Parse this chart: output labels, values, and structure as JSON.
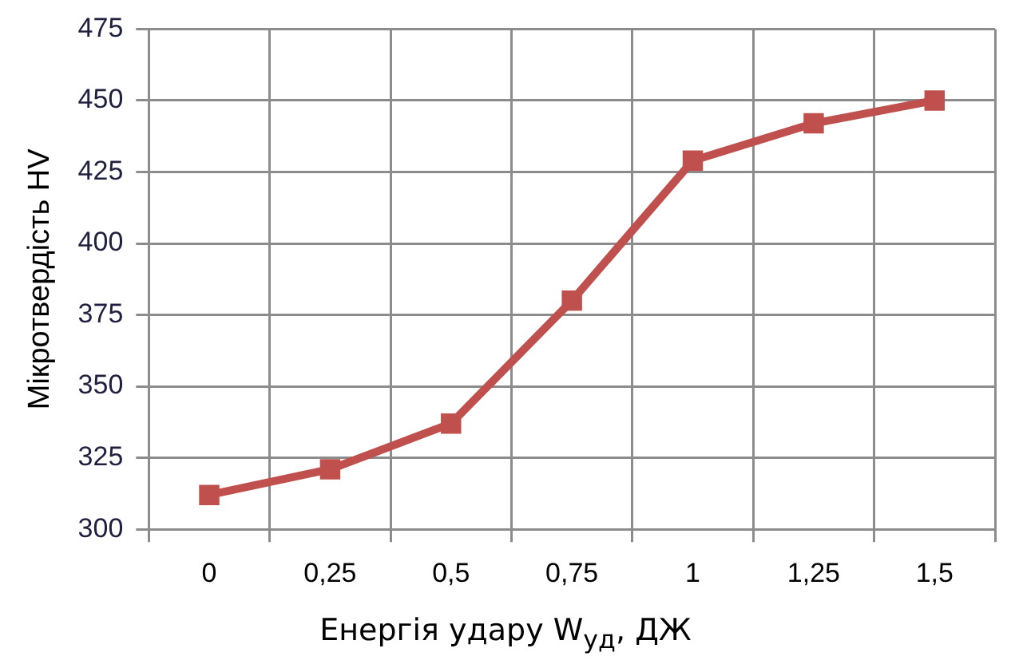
{
  "chart_data": {
    "type": "line",
    "xlabel": "Енергія удару W$_{уд}$, ДЖ",
    "ylabel": "Мікротвердість HV",
    "categories": [
      "0",
      "0,25",
      "0,5",
      "0,75",
      "1",
      "1,25",
      "1,5"
    ],
    "series": [
      {
        "color": "#c0504d",
        "values": [
          312,
          321,
          337,
          380,
          429,
          442,
          450
        ]
      }
    ],
    "ylim": [
      300,
      475
    ],
    "yticks": [
      300,
      325,
      350,
      375,
      400,
      425,
      450,
      475
    ],
    "grid": true,
    "marker": "square",
    "line_style": "solid",
    "legend": false
  }
}
